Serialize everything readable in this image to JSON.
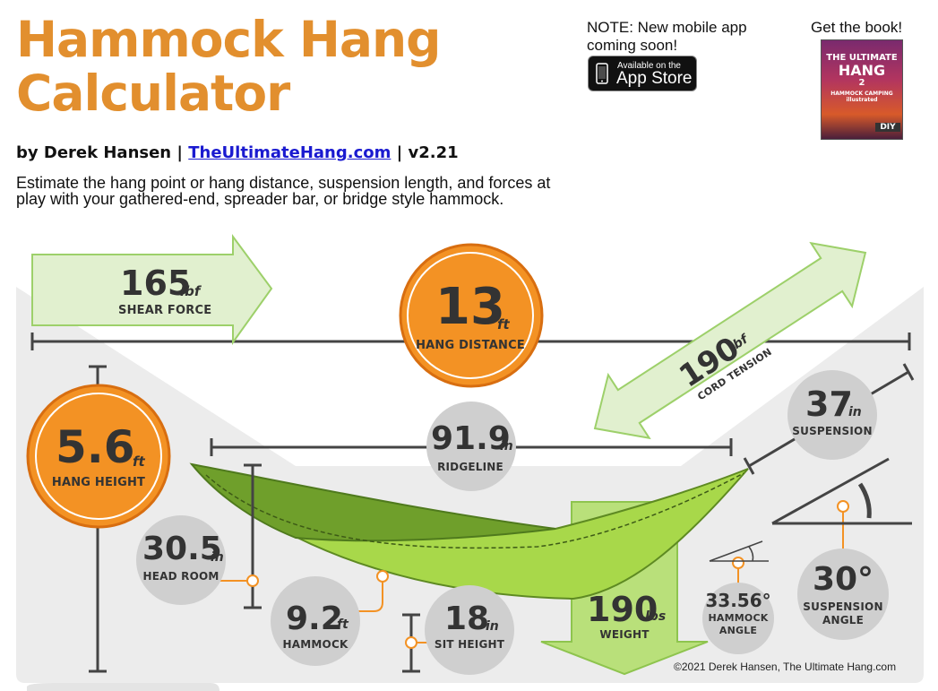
{
  "header": {
    "title": "Hammock Hang Calculator",
    "byline_prefix": "by Derek Hansen |",
    "site_link": "TheUltimateHang.com",
    "version": "| v2.21",
    "description": "Estimate the hang point or hang distance, suspension length, and forces at play with your gathered-end, spreader bar, or bridge style hammock."
  },
  "promo": {
    "note": "NOTE: New mobile app coming soon!",
    "appstore_line1": "Available on the",
    "appstore_line2": "App Store",
    "get_book": "Get the book!",
    "book_title_1": "THE ULTIMATE",
    "book_title_2": "HANG",
    "book_number": "2",
    "book_subtitle": "HAMMOCK CAMPING illustrated",
    "book_badge": "DIY"
  },
  "metrics": {
    "shear_force": {
      "value": "165",
      "unit": "lbf",
      "label": "SHEAR FORCE"
    },
    "hang_distance": {
      "value": "13",
      "unit": "ft",
      "label": "HANG DISTANCE"
    },
    "cord_tension": {
      "value": "190",
      "unit": "lbf",
      "label": "CORD TENSION"
    },
    "hang_height": {
      "value": "5.6",
      "unit": "ft",
      "label": "HANG HEIGHT"
    },
    "ridgeline": {
      "value": "91.9",
      "unit": "in",
      "label": "RIDGELINE"
    },
    "suspension": {
      "value": "37",
      "unit": "in",
      "label": "SUSPENSION"
    },
    "head_room": {
      "value": "30.5",
      "unit": "in",
      "label": "HEAD ROOM"
    },
    "hammock": {
      "value": "9.2",
      "unit": "ft",
      "label": "HAMMOCK"
    },
    "sit_height": {
      "value": "18",
      "unit": "in",
      "label": "SIT HEIGHT"
    },
    "weight": {
      "value": "190",
      "unit": "lbs",
      "label": "WEIGHT"
    },
    "hammock_angle": {
      "value": "33.56°",
      "label_1": "HAMMOCK",
      "label_2": "ANGLE"
    },
    "suspension_angle": {
      "value": "30°",
      "label_1": "SUSPENSION",
      "label_2": "ANGLE"
    }
  },
  "footer": {
    "copyright": "©2021 Derek Hansen, The Ultimate Hang.com"
  },
  "colors": {
    "title_orange": "#e28f2e",
    "circle_orange": "#f39224",
    "arrow_green_fill": "#e1f0cf",
    "arrow_green_stroke": "#9dd06a",
    "hammock_dark": "#6f9f2b",
    "hammock_light": "#a8d84a",
    "panel_gray": "#ececec",
    "circle_gray": "#cfcfcf",
    "line_dark": "#444444",
    "link_blue": "#1a1ad0"
  },
  "icons": [
    "apple-icon",
    "book-cover-image"
  ]
}
